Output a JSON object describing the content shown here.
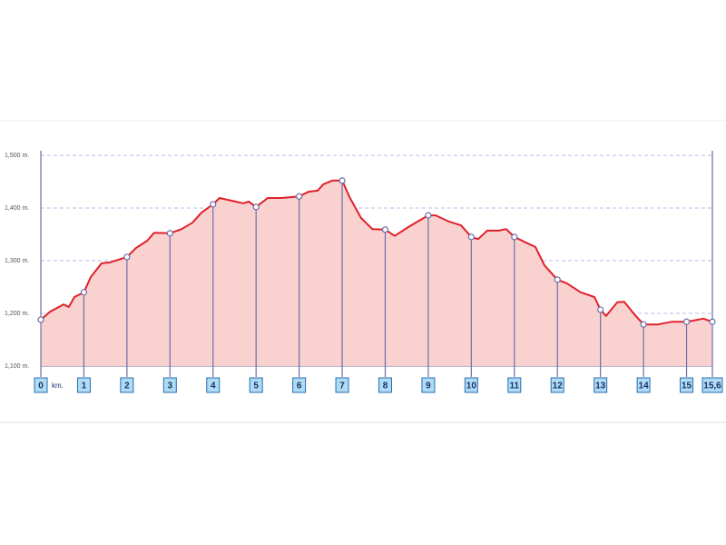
{
  "chart_data": {
    "type": "area",
    "x_unit_label": "km.",
    "grid": true,
    "xlim": [
      0,
      15.6
    ],
    "ylim": [
      1100,
      1500
    ],
    "xticks": [
      0,
      1,
      2,
      3,
      4,
      5,
      6,
      7,
      8,
      9,
      10,
      11,
      12,
      13,
      14,
      15,
      {
        "value": 15.6,
        "label": "15,6"
      }
    ],
    "yticks": [
      {
        "value": 1100,
        "label": "1,100 m."
      },
      {
        "value": 1200,
        "label": "1,200 m."
      },
      {
        "value": 1300,
        "label": "1,300 m."
      },
      {
        "value": 1400,
        "label": "1,400 m."
      },
      {
        "value": 1500,
        "label": "1,500 m."
      }
    ],
    "series": [
      {
        "color": "#e0202a",
        "fill": "#f9d2d0",
        "x": [
          0,
          0.21,
          0.53,
          0.65,
          0.78,
          1,
          1.16,
          1.41,
          1.62,
          2,
          2.21,
          2.47,
          2.63,
          3,
          3.27,
          3.52,
          3.73,
          4,
          4.15,
          4.43,
          4.7,
          4.83,
          5,
          5.27,
          5.59,
          6,
          6.22,
          6.43,
          6.56,
          6.77,
          7,
          7.17,
          7.44,
          7.7,
          8,
          8.22,
          8.54,
          8.79,
          9,
          9.17,
          9.49,
          9.76,
          10,
          10.16,
          10.37,
          10.64,
          10.81,
          11,
          11.28,
          11.49,
          11.7,
          12,
          12.22,
          12.54,
          12.86,
          13,
          13.13,
          13.39,
          13.55,
          13.8,
          14,
          14.33,
          14.65,
          15,
          15.39,
          15.6
        ],
        "values": [
          1188,
          1203,
          1217,
          1212,
          1231,
          1240,
          1269,
          1295,
          1297,
          1307,
          1324,
          1338,
          1353,
          1352,
          1360,
          1372,
          1391,
          1407,
          1419,
          1414,
          1409,
          1412,
          1402,
          1419,
          1419,
          1422,
          1431,
          1433,
          1445,
          1452,
          1452,
          1421,
          1381,
          1360,
          1359,
          1347,
          1364,
          1376,
          1386,
          1386,
          1374,
          1367,
          1345,
          1341,
          1357,
          1357,
          1360,
          1345,
          1334,
          1326,
          1291,
          1264,
          1257,
          1240,
          1231,
          1207,
          1195,
          1221,
          1222,
          1197,
          1179,
          1179,
          1184,
          1184,
          1190,
          1184
        ]
      }
    ]
  }
}
